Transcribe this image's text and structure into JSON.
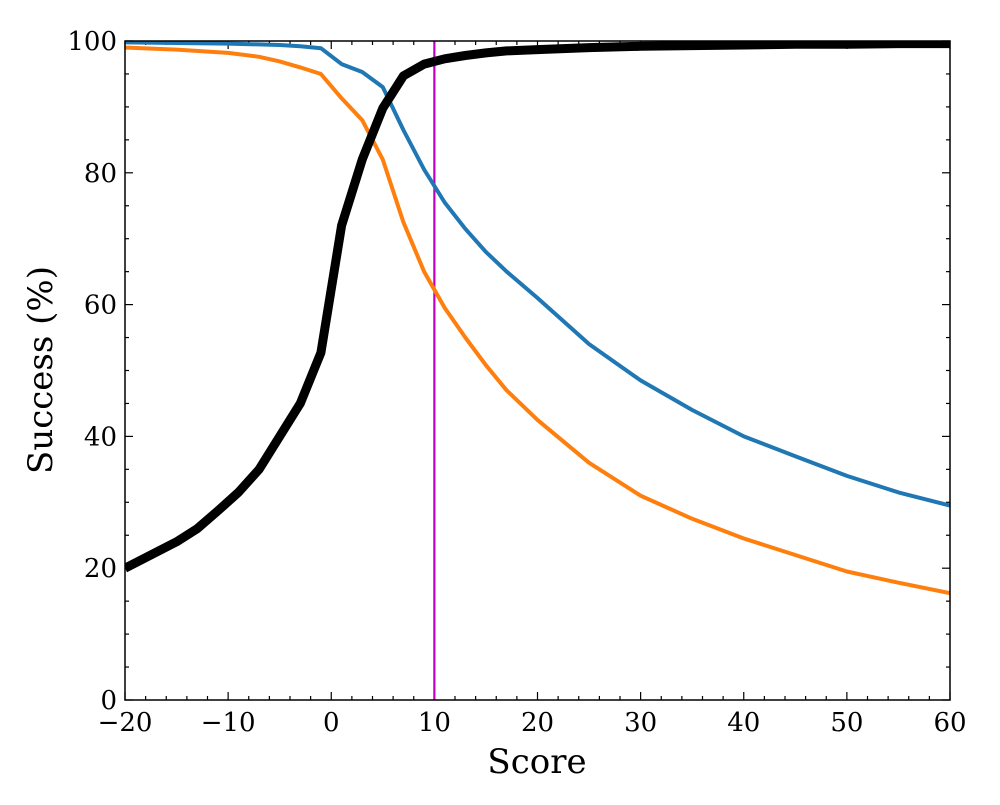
{
  "chart_data": {
    "type": "line",
    "title": "",
    "xlabel": "Score",
    "ylabel": "Success (%)",
    "xlim": [
      -20,
      60
    ],
    "ylim": [
      0,
      100
    ],
    "x_ticks": [
      -20,
      -10,
      0,
      10,
      20,
      30,
      40,
      50,
      60
    ],
    "x_tick_labels": [
      "−20",
      "−10",
      "0",
      "10",
      "20",
      "30",
      "40",
      "50",
      "60"
    ],
    "y_ticks": [
      0,
      20,
      40,
      60,
      80,
      100
    ],
    "y_tick_labels": [
      "0",
      "20",
      "40",
      "60",
      "80",
      "100"
    ],
    "grid": false,
    "legend": "none",
    "vline": {
      "x": 10,
      "color": "#bf00bf"
    },
    "series": [
      {
        "color": "#1f77b4",
        "width": 4,
        "x": [
          -20,
          -15,
          -10,
          -5,
          -3,
          -1,
          1,
          3,
          5,
          7,
          9,
          11,
          13,
          15,
          17,
          20,
          25,
          30,
          35,
          40,
          45,
          50,
          55,
          60
        ],
        "y": [
          99.8,
          99.7,
          99.6,
          99.4,
          99.2,
          98.9,
          96.5,
          95.3,
          93,
          86.5,
          80.5,
          75.5,
          71.5,
          68,
          65,
          61,
          54,
          48.5,
          44,
          40,
          37,
          34,
          31.5,
          29.5
        ]
      },
      {
        "color": "#ff7f0e",
        "width": 4,
        "x": [
          -20,
          -15,
          -10,
          -7,
          -5,
          -3,
          -1,
          1,
          3,
          5,
          7,
          9,
          11,
          13,
          15,
          17,
          20,
          25,
          30,
          35,
          40,
          45,
          50,
          55,
          60
        ],
        "y": [
          99,
          98.7,
          98.2,
          97.6,
          96.9,
          96,
          95,
          91.3,
          88,
          82,
          72.5,
          65,
          59.5,
          55,
          50.8,
          47,
          42.5,
          36,
          31,
          27.5,
          24.5,
          22,
          19.5,
          17.8,
          16.2
        ]
      },
      {
        "color": "#000000",
        "width": 9,
        "x": [
          -20,
          -15,
          -13,
          -11,
          -9,
          -7,
          -5,
          -3,
          -1,
          1,
          3,
          5,
          7,
          9,
          11,
          13,
          15,
          17,
          20,
          25,
          30,
          35,
          40,
          45,
          50,
          55,
          60
        ],
        "y": [
          20,
          24,
          26,
          28.7,
          31.5,
          35,
          40,
          45,
          52.7,
          72,
          82,
          89.8,
          94.7,
          96.5,
          97.3,
          97.8,
          98.2,
          98.5,
          98.7,
          99,
          99.2,
          99.3,
          99.4,
          99.5,
          99.5,
          99.6,
          99.6
        ]
      }
    ]
  }
}
